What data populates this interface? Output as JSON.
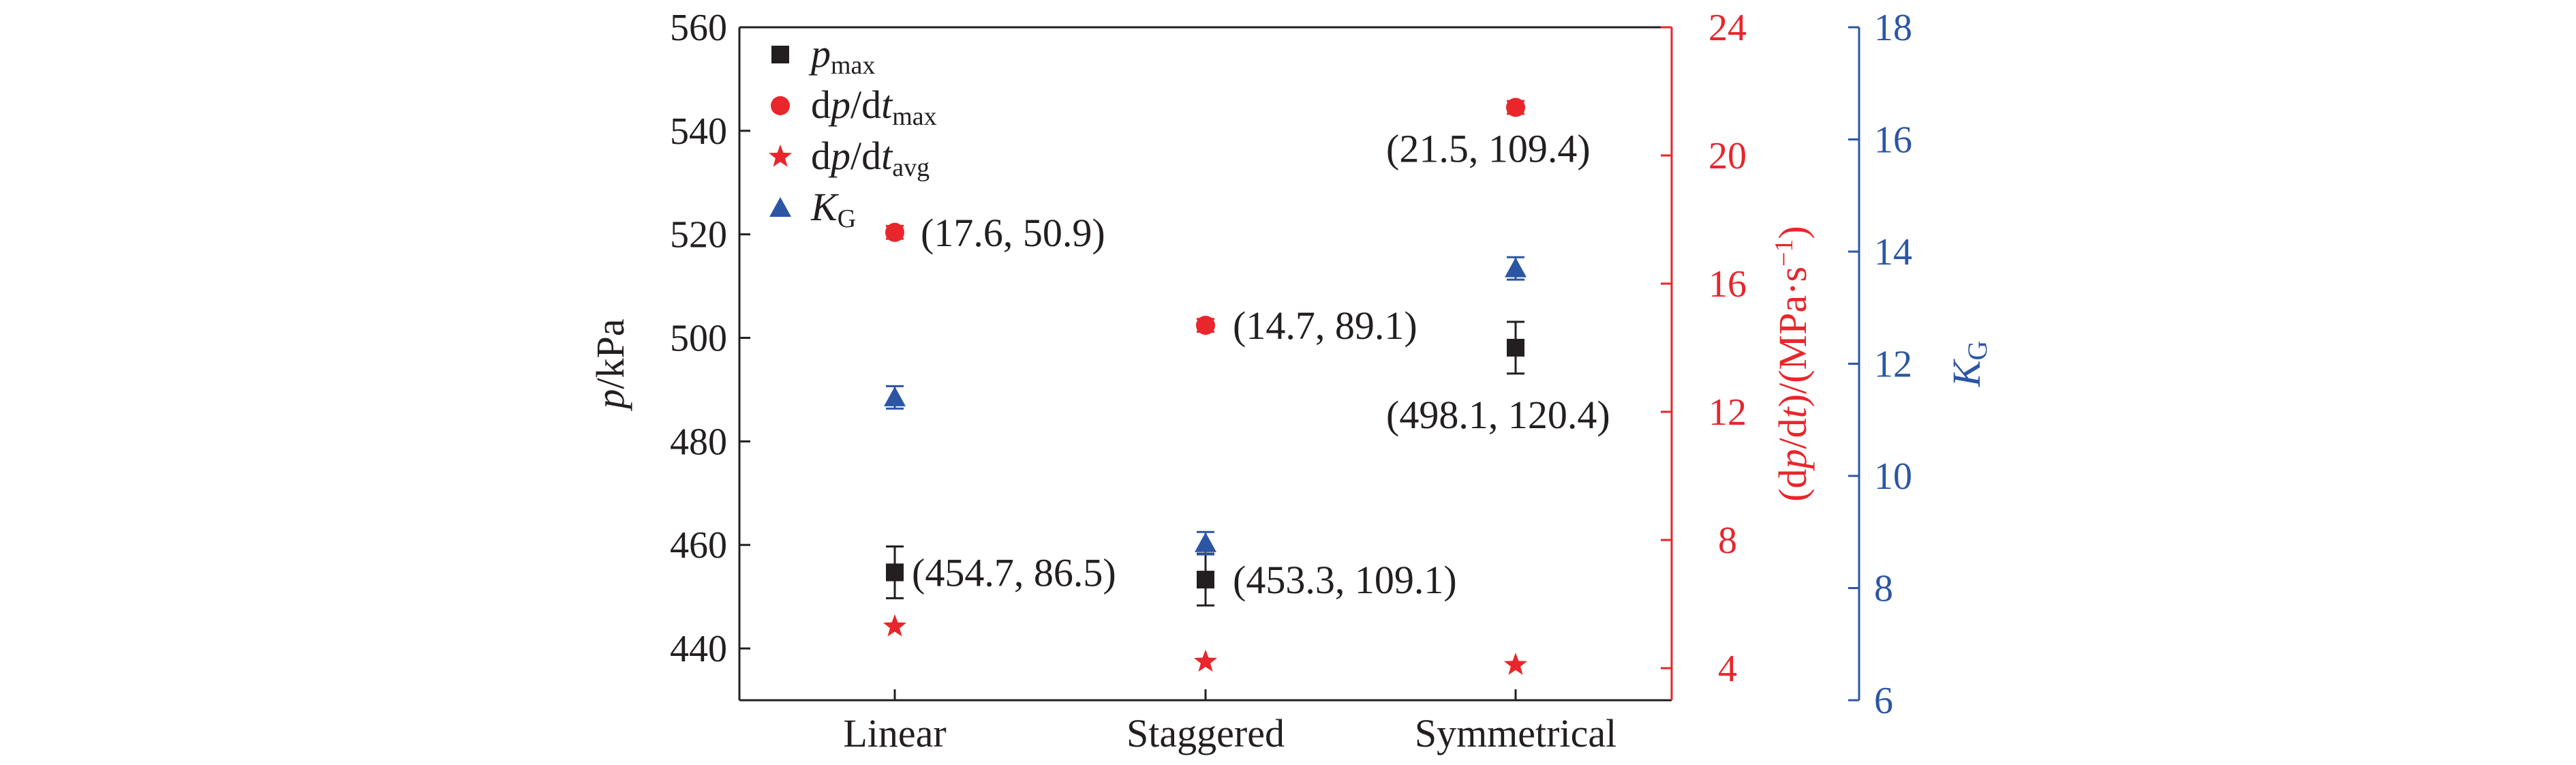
{
  "colors": {
    "black": "#231f20",
    "red": "#e8262b",
    "blue": "#2c56a4"
  },
  "chart_data": {
    "type": "scatter",
    "categories": [
      "Linear",
      "Staggered",
      "Symmetrical"
    ],
    "axes": {
      "left": {
        "label_italic": "p",
        "label_rest": "/kPa",
        "ylim": [
          430,
          560
        ],
        "ticks": [
          440,
          460,
          480,
          500,
          520,
          540,
          560
        ]
      },
      "right1": {
        "label_prefix": "(d",
        "label_p": "p",
        "label_mid": "/d",
        "label_t": "t",
        "label_suffix": ")/(MPa·s",
        "label_exp": "−1",
        "label_close": ")",
        "ylim": [
          3,
          24
        ],
        "ticks": [
          4,
          8,
          12,
          16,
          20,
          24
        ]
      },
      "right2": {
        "label_main": "K",
        "label_sub": "G",
        "ylim": [
          6,
          18
        ],
        "ticks": [
          6,
          8,
          10,
          12,
          14,
          16,
          18
        ]
      }
    },
    "series": [
      {
        "key": "pmax",
        "legend_main": "p",
        "legend_sub": "max",
        "axis": "left",
        "marker": "square",
        "color": "#231f20",
        "values": [
          454.7,
          453.3,
          498.1
        ],
        "err": [
          5,
          5,
          5
        ]
      },
      {
        "key": "dpdtmax",
        "legend_main": "dp/dt",
        "legend_sub": "max",
        "axis": "right1",
        "marker": "circle",
        "color": "#e8262b",
        "values": [
          17.6,
          14.7,
          21.5
        ],
        "err": [
          0.2,
          0.2,
          0.2
        ]
      },
      {
        "key": "dpdtavg",
        "legend_main": "dp/dt",
        "legend_sub": "avg",
        "axis": "right1",
        "marker": "star",
        "color": "#e8262b",
        "values": [
          5.3,
          4.2,
          4.1
        ],
        "err": [
          0,
          0,
          0
        ]
      },
      {
        "key": "kg",
        "legend_main": "K",
        "legend_sub": "G",
        "axis": "right2",
        "marker": "triangle",
        "color": "#2c56a4",
        "values": [
          11.4,
          8.8,
          13.7
        ],
        "err": [
          0.2,
          0.2,
          0.2
        ]
      }
    ],
    "annotations": [
      {
        "text": "(17.6, 50.9)",
        "series": "dpdtmax",
        "index": 0
      },
      {
        "text": "(14.7, 89.1)",
        "series": "dpdtmax",
        "index": 1
      },
      {
        "text": "(21.5, 109.4)",
        "series": "dpdtmax",
        "index": 2
      },
      {
        "text": "(454.7, 86.5)",
        "series": "pmax",
        "index": 0
      },
      {
        "text": "(453.3, 109.1)",
        "series": "pmax",
        "index": 1
      },
      {
        "text": "(498.1, 120.4)",
        "series": "pmax",
        "index": 2
      }
    ],
    "legend_position": "top-left",
    "grid": false
  }
}
